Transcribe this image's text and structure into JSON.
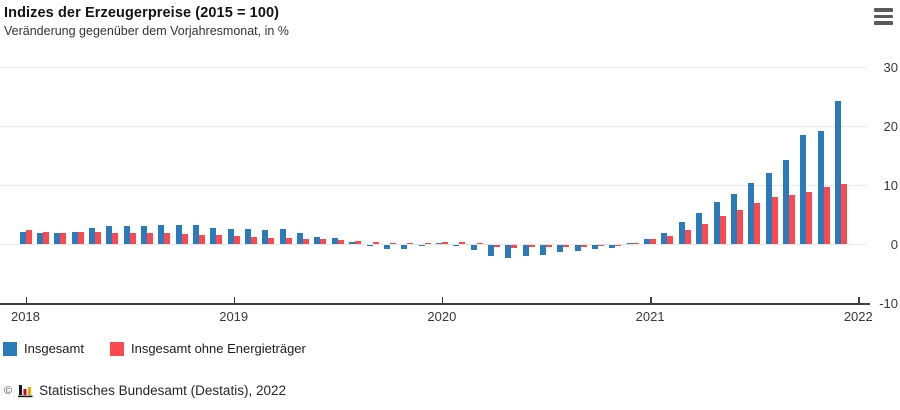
{
  "header": {
    "title": "Indizes der Erzeugerpreise (2015 = 100)",
    "subtitle": "Veränderung gegenüber dem Vorjahresmonat, in %"
  },
  "menu": {
    "icon": "hamburger-menu-icon"
  },
  "chart_data": {
    "type": "bar",
    "title": "Indizes der Erzeugerpreise (2015 = 100)",
    "subtitle": "Veränderung gegenüber dem Vorjahresmonat, in %",
    "x": [
      "2018-01",
      "2018-02",
      "2018-03",
      "2018-04",
      "2018-05",
      "2018-06",
      "2018-07",
      "2018-08",
      "2018-09",
      "2018-10",
      "2018-11",
      "2018-12",
      "2019-01",
      "2019-02",
      "2019-03",
      "2019-04",
      "2019-05",
      "2019-06",
      "2019-07",
      "2019-08",
      "2019-09",
      "2019-10",
      "2019-11",
      "2019-12",
      "2020-01",
      "2020-02",
      "2020-03",
      "2020-04",
      "2020-05",
      "2020-06",
      "2020-07",
      "2020-08",
      "2020-09",
      "2020-10",
      "2020-11",
      "2020-12",
      "2021-01",
      "2021-02",
      "2021-03",
      "2021-04",
      "2021-05",
      "2021-06",
      "2021-07",
      "2021-08",
      "2021-09",
      "2021-10",
      "2021-11",
      "2021-12"
    ],
    "series": [
      {
        "name": "Insgesamt",
        "color": "#2b7bba",
        "values": [
          2.1,
          1.8,
          1.9,
          2.0,
          2.7,
          3.0,
          3.0,
          3.1,
          3.2,
          3.3,
          3.3,
          2.7,
          2.6,
          2.6,
          2.4,
          2.5,
          1.9,
          1.2,
          1.1,
          0.3,
          -0.1,
          -0.6,
          -0.7,
          -0.2,
          0.2,
          -0.1,
          -0.8,
          -1.9,
          -2.2,
          -1.8,
          -1.7,
          -1.2,
          -1.0,
          -0.7,
          -0.5,
          0.2,
          0.9,
          1.9,
          3.7,
          5.2,
          7.2,
          8.5,
          10.4,
          12.0,
          14.2,
          18.4,
          19.2,
          24.2
        ]
      },
      {
        "name": "Insgesamt ohne Energieträger",
        "color": "#fa4a50",
        "values": [
          2.3,
          2.0,
          1.9,
          2.0,
          2.0,
          1.9,
          1.9,
          1.8,
          1.8,
          1.7,
          1.6,
          1.5,
          1.3,
          1.2,
          1.1,
          1.1,
          0.9,
          0.8,
          0.6,
          0.5,
          0.3,
          0.2,
          0.1,
          0.2,
          0.3,
          0.4,
          0.2,
          -0.4,
          -0.5,
          -0.4,
          -0.3,
          -0.3,
          -0.3,
          -0.2,
          -0.1,
          0.2,
          0.8,
          1.4,
          2.3,
          3.4,
          4.8,
          5.8,
          7.0,
          7.9,
          8.3,
          8.8,
          9.6,
          10.2
        ]
      }
    ],
    "ylim": [
      -10,
      30
    ],
    "yticks": [
      30,
      20,
      10,
      0,
      -10
    ],
    "xticks": [
      "2018",
      "2019",
      "2020",
      "2021",
      "2022"
    ],
    "grid": true,
    "legend_position": "bottom"
  },
  "footer": {
    "copyright": "©",
    "logo": "destatis-bar-chart-logo",
    "source": "Statistisches Bundesamt (Destatis), 2022"
  }
}
